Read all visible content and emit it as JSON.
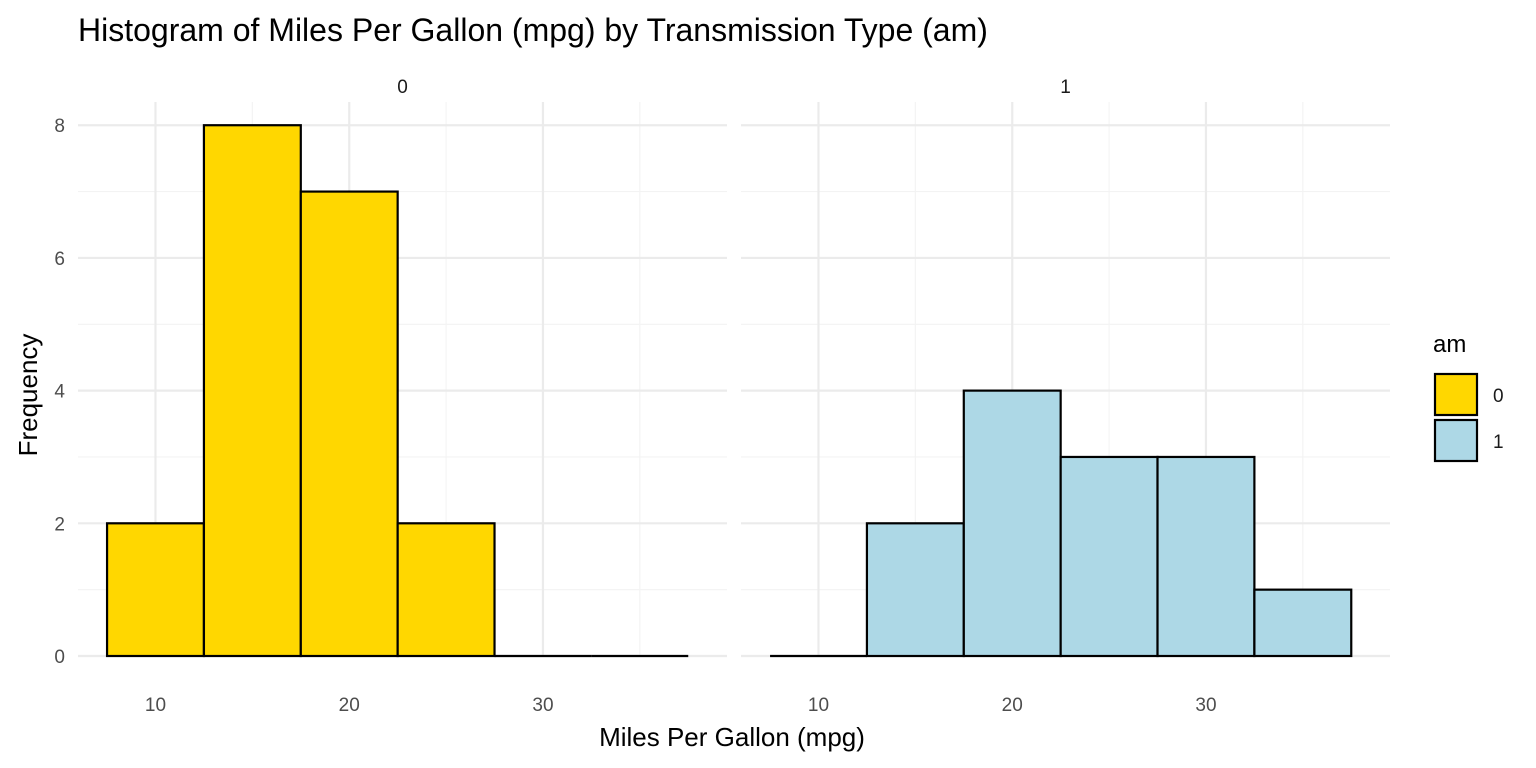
{
  "chart_data": {
    "type": "bar",
    "subtype": "histogram-faceted",
    "title": "Histogram of Miles Per Gallon (mpg) by Transmission Type (am)",
    "xlabel": "Miles Per Gallon (mpg)",
    "ylabel": "Frequency",
    "xlim": [
      6,
      39.5
    ],
    "ylim": [
      0,
      8.35
    ],
    "x_ticks": [
      10,
      20,
      30
    ],
    "y_ticks": [
      0,
      2,
      4,
      6,
      8
    ],
    "bin_width": 5,
    "bin_edges": [
      7.5,
      12.5,
      17.5,
      22.5,
      27.5,
      32.5,
      37.5
    ],
    "grid": true,
    "legend": {
      "title": "am",
      "position": "right",
      "entries": [
        {
          "label": "0",
          "color": "#FFD700"
        },
        {
          "label": "1",
          "color": "#ADD8E6"
        }
      ]
    },
    "facets": [
      {
        "strip": "0",
        "color": "#FFD700",
        "values": [
          2,
          8,
          7,
          2,
          0,
          0
        ]
      },
      {
        "strip": "1",
        "color": "#ADD8E6",
        "values": [
          0,
          2,
          4,
          3,
          3,
          1
        ]
      }
    ]
  }
}
